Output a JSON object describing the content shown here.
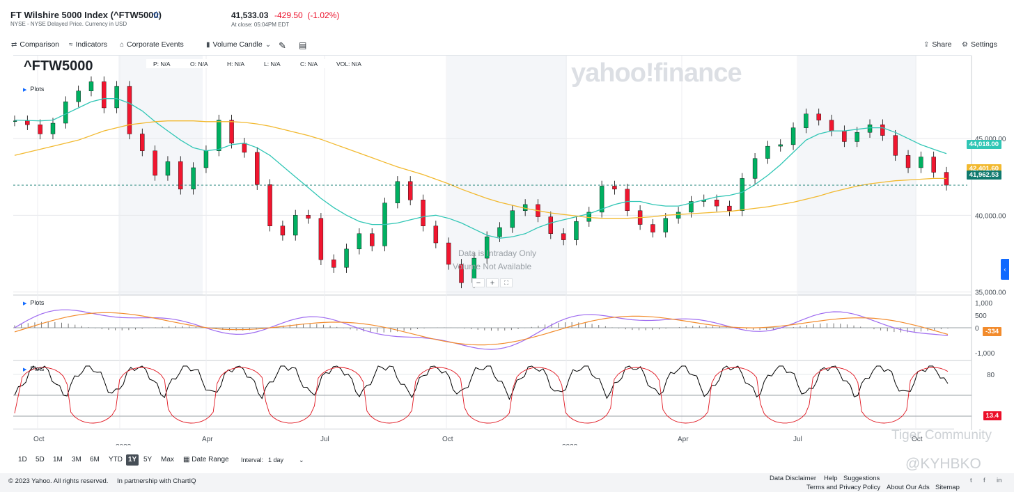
{
  "header": {
    "title": "FT Wilshire 5000 Index (^FTW5000)",
    "subtitle": "NYSE - NYSE Delayed Price. Currency in USD",
    "price": "41,533.03",
    "change": "-429.50",
    "change_pct": "(-1.02%)",
    "close_time": "At close: 05:04PM EDT"
  },
  "toolbar": {
    "comparison": "Comparison",
    "indicators": "Indicators",
    "corporate_events": "Corporate Events",
    "volume_candle": "Volume Candle",
    "share": "Share",
    "settings": "Settings"
  },
  "chart_header": {
    "symbol": "^FTW5000",
    "p": "P: N/A",
    "o": "O: N/A",
    "h": "H: N/A",
    "l": "L: N/A",
    "c": "C: N/A",
    "vol": "VOL: N/A",
    "plots": "Plots",
    "watermark": "yahoo!finance",
    "msg1": "Data is Intraday Only",
    "msg2": "Volume Not Available"
  },
  "chart_data": {
    "type": "line",
    "panel": "price",
    "x_ticks": [
      "Oct",
      "2022",
      "Apr",
      "Jul",
      "Oct",
      "2023",
      "Apr",
      "Jul",
      "Oct"
    ],
    "y_ticks": [
      "45,000.00",
      "40,000.00",
      "35,000.00"
    ],
    "ylim": [
      34800,
      50400
    ],
    "series": [
      {
        "values": [
          46150,
          45900,
          45300,
          46000,
          47400,
          48100,
          48700,
          47000,
          48400,
          45300,
          44200,
          42600,
          43500,
          41700,
          43100,
          44200,
          46200,
          44700,
          44100,
          42000,
          39300,
          38700,
          40000,
          39800,
          37100,
          36600,
          37800,
          38800,
          38000,
          40800,
          42200,
          41000,
          39300,
          38200,
          36800,
          35600,
          37200,
          38600,
          39200,
          40300,
          40700,
          39900,
          38800,
          38400,
          39600,
          40200,
          41900,
          41700,
          40300,
          39400,
          38900,
          39800,
          40200,
          40900,
          41000,
          40600,
          40300,
          42400,
          43700,
          44500,
          44600,
          45700,
          46600,
          46200,
          45500,
          44800,
          45400,
          45900,
          45200,
          43900,
          43100,
          43800,
          42800,
          41962
        ],
        "color": "#000000"
      },
      {
        "values": [
          46200,
          46180,
          46150,
          46200,
          46600,
          47000,
          47400,
          47600,
          47600,
          47300,
          46800,
          46100,
          45500,
          44900,
          44400,
          44200,
          44300,
          44600,
          44700,
          44400,
          43900,
          43200,
          42500,
          41800,
          41100,
          40500,
          40000,
          39600,
          39400,
          39400,
          39500,
          39700,
          39900,
          40000,
          39800,
          39500,
          39100,
          38700,
          38500,
          38600,
          38800,
          39200,
          39500,
          39700,
          39900,
          40100,
          40400,
          40700,
          40900,
          40900,
          40700,
          40600,
          40600,
          40800,
          41000,
          41200,
          41300,
          41500,
          42000,
          42600,
          43300,
          44100,
          44900,
          45300,
          45500,
          45500,
          45600,
          45700,
          45700,
          45400,
          45000,
          44600,
          44300,
          44018
        ],
        "color": "#30c6b5"
      },
      {
        "values": [
          43900,
          44100,
          44300,
          44500,
          44700,
          44900,
          45200,
          45500,
          45700,
          45900,
          46000,
          46100,
          46150,
          46150,
          46150,
          46100,
          46100,
          46100,
          46050,
          45950,
          45800,
          45600,
          45400,
          45200,
          44950,
          44650,
          44350,
          44050,
          43750,
          43450,
          43150,
          42900,
          42650,
          42350,
          42050,
          41700,
          41400,
          41100,
          40850,
          40650,
          40450,
          40300,
          40150,
          40050,
          39950,
          39850,
          39800,
          39800,
          39800,
          39850,
          39900,
          40000,
          40050,
          40100,
          40150,
          40200,
          40250,
          40350,
          40450,
          40550,
          40700,
          40850,
          41050,
          41250,
          41500,
          41700,
          41900,
          42050,
          42150,
          42250,
          42300,
          42350,
          42400,
          42401
        ],
        "color": "#f2b92f"
      }
    ],
    "macd": {
      "ylim": [
        -1300,
        1300
      ],
      "y_ticks": [
        "1,000",
        "500",
        "0",
        "-1,000"
      ],
      "value_label": "-334"
    },
    "stochastic": {
      "ylim": [
        0,
        100
      ],
      "y_ticks": [
        "80"
      ],
      "value_label": "13.4"
    },
    "labels": {
      "ma_short": "44,018.00",
      "ma_long": "42,401.60",
      "last": "41,962.53"
    }
  },
  "ranges": {
    "r1d": "1D",
    "r5d": "5D",
    "r1m": "1M",
    "r3m": "3M",
    "r6m": "6M",
    "rytd": "YTD",
    "r1y": "1Y",
    "r5y": "5Y",
    "rmax": "Max",
    "date_range": "Date Range",
    "interval_label": "Interval:",
    "interval_value": "1 day"
  },
  "footer": {
    "copyright": "© 2023 Yahoo. All rights reserved.",
    "partnership": "In partnership with ChartIQ",
    "disclaimer": "Data Disclaimer",
    "help": "Help",
    "suggestions": "Suggestions",
    "terms": "Terms and Privacy Policy",
    "about": "About Our Ads",
    "sitemap": "Sitemap"
  },
  "watermarks": {
    "tiger": "Tiger Community",
    "handle": "@KYHBKO"
  },
  "colors": {
    "up": "#00b061",
    "down": "#f0162f",
    "ma_short": "#30c6b5",
    "ma_long": "#f2b92f",
    "macd": "#9e6af0",
    "signal": "#f28b2c"
  }
}
